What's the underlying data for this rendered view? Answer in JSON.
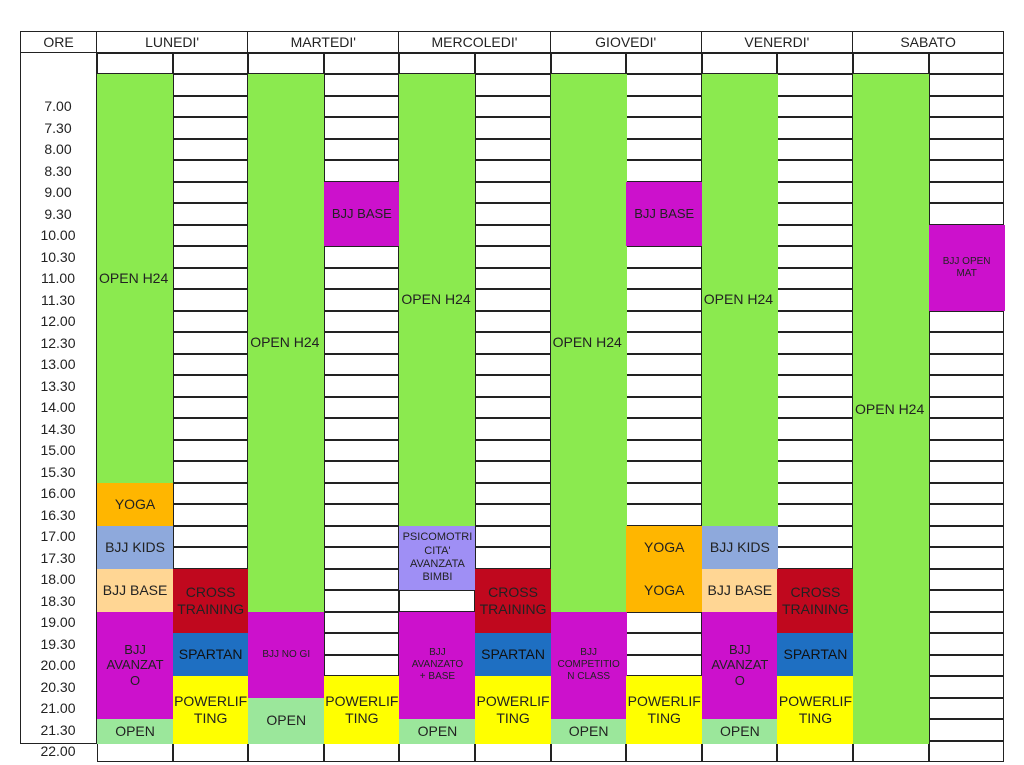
{
  "header": {
    "time_label": "ORE",
    "days": [
      "LUNEDI'",
      "MARTEDI'",
      "MERCOLEDI'",
      "GIOVEDI'",
      "VENERDI'",
      "SABATO"
    ]
  },
  "times": [
    "7.00",
    "7.30",
    "8.00",
    "8.30",
    "9.00",
    "9.30",
    "10.00",
    "10.30",
    "11.00",
    "11.30",
    "12.00",
    "12.30",
    "13.00",
    "13.30",
    "14.00",
    "14.30",
    "15.00",
    "15.30",
    "16.00",
    "16.30",
    "17.00",
    "17.30",
    "18.00",
    "18.30",
    "19.00",
    "19.30",
    "20.00",
    "20.30",
    "21.00",
    "21.30",
    "22.00"
  ],
  "blocks": [
    {
      "id": "mon-open-h24",
      "day": 0,
      "col": 0,
      "start": "6.30",
      "end": "16.00",
      "label": "OPEN H24",
      "color": "green"
    },
    {
      "id": "mon-yoga",
      "day": 0,
      "col": 0,
      "start": "16.00",
      "end": "17.00",
      "label": "YOGA",
      "color": "orange"
    },
    {
      "id": "mon-bjj-kids",
      "day": 0,
      "col": 0,
      "start": "17.00",
      "end": "18.00",
      "label": "BJJ KIDS",
      "color": "slate"
    },
    {
      "id": "mon-bjj-base",
      "day": 0,
      "col": 0,
      "start": "18.00",
      "end": "19.00",
      "label": "BJJ BASE",
      "color": "peach"
    },
    {
      "id": "mon-bjj-avanzato",
      "day": 0,
      "col": 0,
      "start": "19.00",
      "end": "21.30",
      "label": "BJJ AVANZATO",
      "color": "magenta"
    },
    {
      "id": "mon-open",
      "day": 0,
      "col": 0,
      "start": "21.30",
      "end": "22.30",
      "label": "OPEN",
      "color": "light-green"
    },
    {
      "id": "mon-cross-training",
      "day": 0,
      "col": 1,
      "start": "18.00",
      "end": "19.30",
      "label": "CROSS TRAINING",
      "color": "crimson"
    },
    {
      "id": "mon-spartan",
      "day": 0,
      "col": 1,
      "start": "19.30",
      "end": "20.30",
      "label": "SPARTAN",
      "color": "blue"
    },
    {
      "id": "mon-powerlifting",
      "day": 0,
      "col": 1,
      "start": "20.30",
      "end": "22.30",
      "label": "POWERLIFTING",
      "color": "yellow"
    },
    {
      "id": "tue-open-h24",
      "day": 1,
      "col": 0,
      "start": "6.30",
      "end": "19.00",
      "label": "OPEN H24",
      "color": "green"
    },
    {
      "id": "tue-bjj-no-gi",
      "day": 1,
      "col": 0,
      "start": "19.00",
      "end": "21.00",
      "label": "BJJ NO GI",
      "color": "magenta small"
    },
    {
      "id": "tue-open",
      "day": 1,
      "col": 0,
      "start": "21.00",
      "end": "22.30",
      "label": "OPEN",
      "color": "light-green"
    },
    {
      "id": "tue-bjj-base",
      "day": 1,
      "col": 1,
      "start": "9.00",
      "end": "10.30",
      "label": "BJJ BASE",
      "color": "magenta"
    },
    {
      "id": "tue-powerlifting",
      "day": 1,
      "col": 1,
      "start": "20.30",
      "end": "22.30",
      "label": "POWERLIFTING",
      "color": "yellow"
    },
    {
      "id": "wed-open-h24",
      "day": 2,
      "col": 0,
      "start": "6.30",
      "end": "17.00",
      "label": "OPEN H24",
      "color": "green"
    },
    {
      "id": "wed-psicomotricita",
      "day": 2,
      "col": 0,
      "start": "17.00",
      "end": "18.30",
      "label": "PSICOMOTRICITA' AVANZATA BIMBI",
      "color": "lavender"
    },
    {
      "id": "wed-bjj-avanzato-base",
      "day": 2,
      "col": 0,
      "start": "19.00",
      "end": "21.30",
      "label": "BJJ AVANZATO + BASE",
      "color": "magenta small"
    },
    {
      "id": "wed-open",
      "day": 2,
      "col": 0,
      "start": "21.30",
      "end": "22.30",
      "label": "OPEN",
      "color": "light-green"
    },
    {
      "id": "wed-cross-training",
      "day": 2,
      "col": 1,
      "start": "18.00",
      "end": "19.30",
      "label": "CROSS TRAINING",
      "color": "crimson"
    },
    {
      "id": "wed-spartan",
      "day": 2,
      "col": 1,
      "start": "19.30",
      "end": "20.30",
      "label": "SPARTAN",
      "color": "blue"
    },
    {
      "id": "wed-powerlifting",
      "day": 2,
      "col": 1,
      "start": "20.30",
      "end": "22.30",
      "label": "POWERLIFTING",
      "color": "yellow"
    },
    {
      "id": "thu-open-h24",
      "day": 3,
      "col": 0,
      "start": "6.30",
      "end": "19.00",
      "label": "OPEN H24",
      "color": "green"
    },
    {
      "id": "thu-bjj-competition",
      "day": 3,
      "col": 0,
      "start": "19.00",
      "end": "21.30",
      "label": "BJJ COMPETITION CLASS",
      "color": "magenta small"
    },
    {
      "id": "thu-open",
      "day": 3,
      "col": 0,
      "start": "21.30",
      "end": "22.30",
      "label": "OPEN",
      "color": "light-green"
    },
    {
      "id": "thu-bjj-base",
      "day": 3,
      "col": 1,
      "start": "9.00",
      "end": "10.30",
      "label": "BJJ BASE",
      "color": "magenta"
    },
    {
      "id": "thu-yoga-1",
      "day": 3,
      "col": 1,
      "start": "17.00",
      "end": "18.00",
      "label": "YOGA",
      "color": "orange"
    },
    {
      "id": "thu-yoga-2",
      "day": 3,
      "col": 1,
      "start": "18.00",
      "end": "19.00",
      "label": "YOGA",
      "color": "orange"
    },
    {
      "id": "thu-powerlifting",
      "day": 3,
      "col": 1,
      "start": "20.30",
      "end": "22.30",
      "label": "POWERLIFTING",
      "color": "yellow"
    },
    {
      "id": "fri-open-h24",
      "day": 4,
      "col": 0,
      "start": "6.30",
      "end": "17.00",
      "label": "OPEN H24",
      "color": "green"
    },
    {
      "id": "fri-bjj-kids",
      "day": 4,
      "col": 0,
      "start": "17.00",
      "end": "18.00",
      "label": "BJJ KIDS",
      "color": "slate"
    },
    {
      "id": "fri-bjj-base",
      "day": 4,
      "col": 0,
      "start": "18.00",
      "end": "19.00",
      "label": "BJJ BASE",
      "color": "peach"
    },
    {
      "id": "fri-bjj-avanzato",
      "day": 4,
      "col": 0,
      "start": "19.00",
      "end": "21.30",
      "label": "BJJ AVANZATO",
      "color": "magenta"
    },
    {
      "id": "fri-open",
      "day": 4,
      "col": 0,
      "start": "21.30",
      "end": "22.30",
      "label": "OPEN",
      "color": "light-green"
    },
    {
      "id": "fri-cross-training",
      "day": 4,
      "col": 1,
      "start": "18.00",
      "end": "19.30",
      "label": "CROSS TRAINING",
      "color": "crimson"
    },
    {
      "id": "fri-spartan",
      "day": 4,
      "col": 1,
      "start": "19.30",
      "end": "20.30",
      "label": "SPARTAN",
      "color": "blue"
    },
    {
      "id": "fri-powerlifting",
      "day": 4,
      "col": 1,
      "start": "20.30",
      "end": "22.30",
      "label": "POWERLIFTING",
      "color": "yellow"
    },
    {
      "id": "sat-open-h24",
      "day": 5,
      "col": 0,
      "start": "6.30",
      "end": "22.30",
      "label": "OPEN H24",
      "color": "green"
    },
    {
      "id": "sat-bjj-open-mat",
      "day": 5,
      "col": 1,
      "start": "10.00",
      "end": "12.00",
      "label": "BJJ OPEN MAT",
      "color": "magenta small"
    }
  ],
  "colors": {
    "green": "#8bea4f",
    "light-green": "#9be79b",
    "orange": "#ffb600",
    "peach": "#ffd694",
    "slate": "#8ea9dc",
    "magenta": "#cc11cc",
    "crimson": "#c0081e",
    "blue": "#1e6fc2",
    "yellow": "#ffff00",
    "lavender": "#9f8ff5"
  }
}
